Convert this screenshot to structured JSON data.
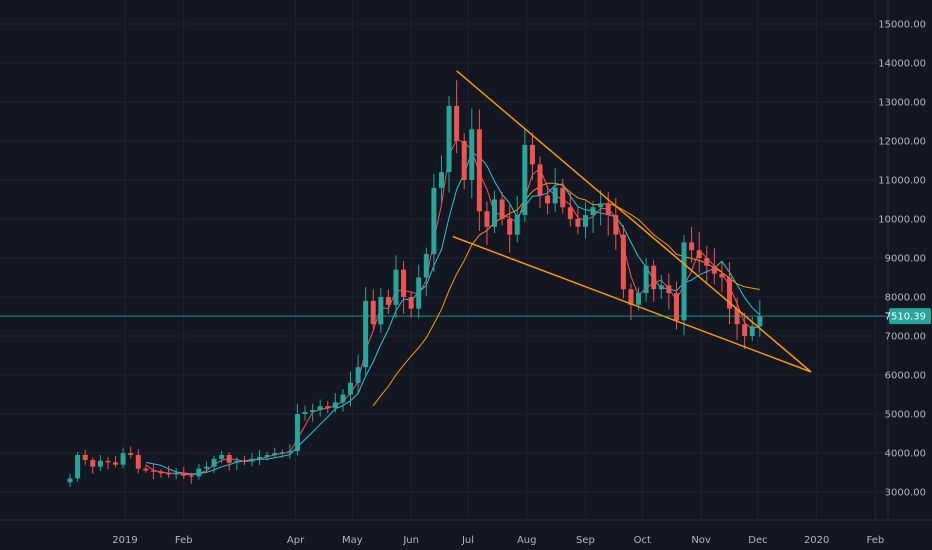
{
  "colors": {
    "background": "#131722",
    "grid": "#1f2330",
    "up": "#26a69a",
    "down": "#ef5350",
    "sma_fast": "#f7525f",
    "sma_mid": "#26c6da",
    "sma_slow": "#ff9800",
    "trendline": "#ff9800",
    "last_price_bg": "#26a69a"
  },
  "chart_data": {
    "type": "candlestick",
    "y_axis": {
      "range": [
        2500,
        15500
      ],
      "ticks": [
        "3000.00",
        "4000.00",
        "5000.00",
        "6000.00",
        "7000.00",
        "8000.00",
        "9000.00",
        "10000.00",
        "11000.00",
        "12000.00",
        "13000.00",
        "14000.00",
        "15000.00"
      ],
      "tick_values": [
        3000,
        4000,
        5000,
        6000,
        7000,
        8000,
        9000,
        10000,
        11000,
        12000,
        13000,
        14000,
        15000
      ]
    },
    "x_axis": {
      "range": [
        "2018-12-03",
        "2020-02-22"
      ],
      "labels": [
        {
          "text": "2019",
          "date": "2019-01-01"
        },
        {
          "text": "Feb",
          "date": "2019-02-01"
        },
        {
          "text": "Apr",
          "date": "2019-04-01"
        },
        {
          "text": "May",
          "date": "2019-05-01"
        },
        {
          "text": "Jun",
          "date": "2019-06-01"
        },
        {
          "text": "Jul",
          "date": "2019-07-01"
        },
        {
          "text": "Aug",
          "date": "2019-08-01"
        },
        {
          "text": "Sep",
          "date": "2019-09-01"
        },
        {
          "text": "Oct",
          "date": "2019-10-01"
        },
        {
          "text": "Nov",
          "date": "2019-11-01"
        },
        {
          "text": "Dec",
          "date": "2019-12-01"
        },
        {
          "text": "2020",
          "date": "2020-01-01"
        },
        {
          "text": "Feb",
          "date": "2020-02-01"
        }
      ]
    },
    "last_price": {
      "value": 7510.39,
      "label": "7510.39"
    },
    "series": {
      "close": [
        3350,
        3950,
        3820,
        3650,
        3800,
        3760,
        3700,
        4000,
        3950,
        3600,
        3550,
        3520,
        3480,
        3450,
        3500,
        3420,
        3400,
        3600,
        3650,
        3850,
        3950,
        3750,
        3800,
        3780,
        3850,
        3900,
        3950,
        4000,
        4020,
        4050,
        5000,
        5050,
        5100,
        5200,
        5150,
        5300,
        5500,
        5800,
        6200,
        7900,
        7300,
        8000,
        7800,
        8700,
        8000,
        7700,
        8500,
        9100,
        10800,
        11200,
        12900,
        12000,
        11000,
        12300,
        10200,
        9800,
        10500,
        10000,
        9600,
        10100,
        11900,
        11400,
        10600,
        10400,
        10800,
        10300,
        10000,
        9800,
        10100,
        10300,
        10400,
        10100,
        9600,
        8200,
        7800,
        8100,
        8800,
        8200,
        8300,
        8100,
        7400,
        9400,
        9200,
        9000,
        8800,
        8600,
        8500,
        7700,
        7300,
        7000,
        7250,
        7510
      ]
    },
    "trendlines": [
      {
        "from": {
          "date": "2019-06-25",
          "value": 13800
        },
        "to": {
          "date": "2019-12-29",
          "value": 6080
        }
      },
      {
        "from": {
          "date": "2019-06-23",
          "value": 9550
        },
        "to": {
          "date": "2019-12-29",
          "value": 6080
        }
      }
    ]
  }
}
